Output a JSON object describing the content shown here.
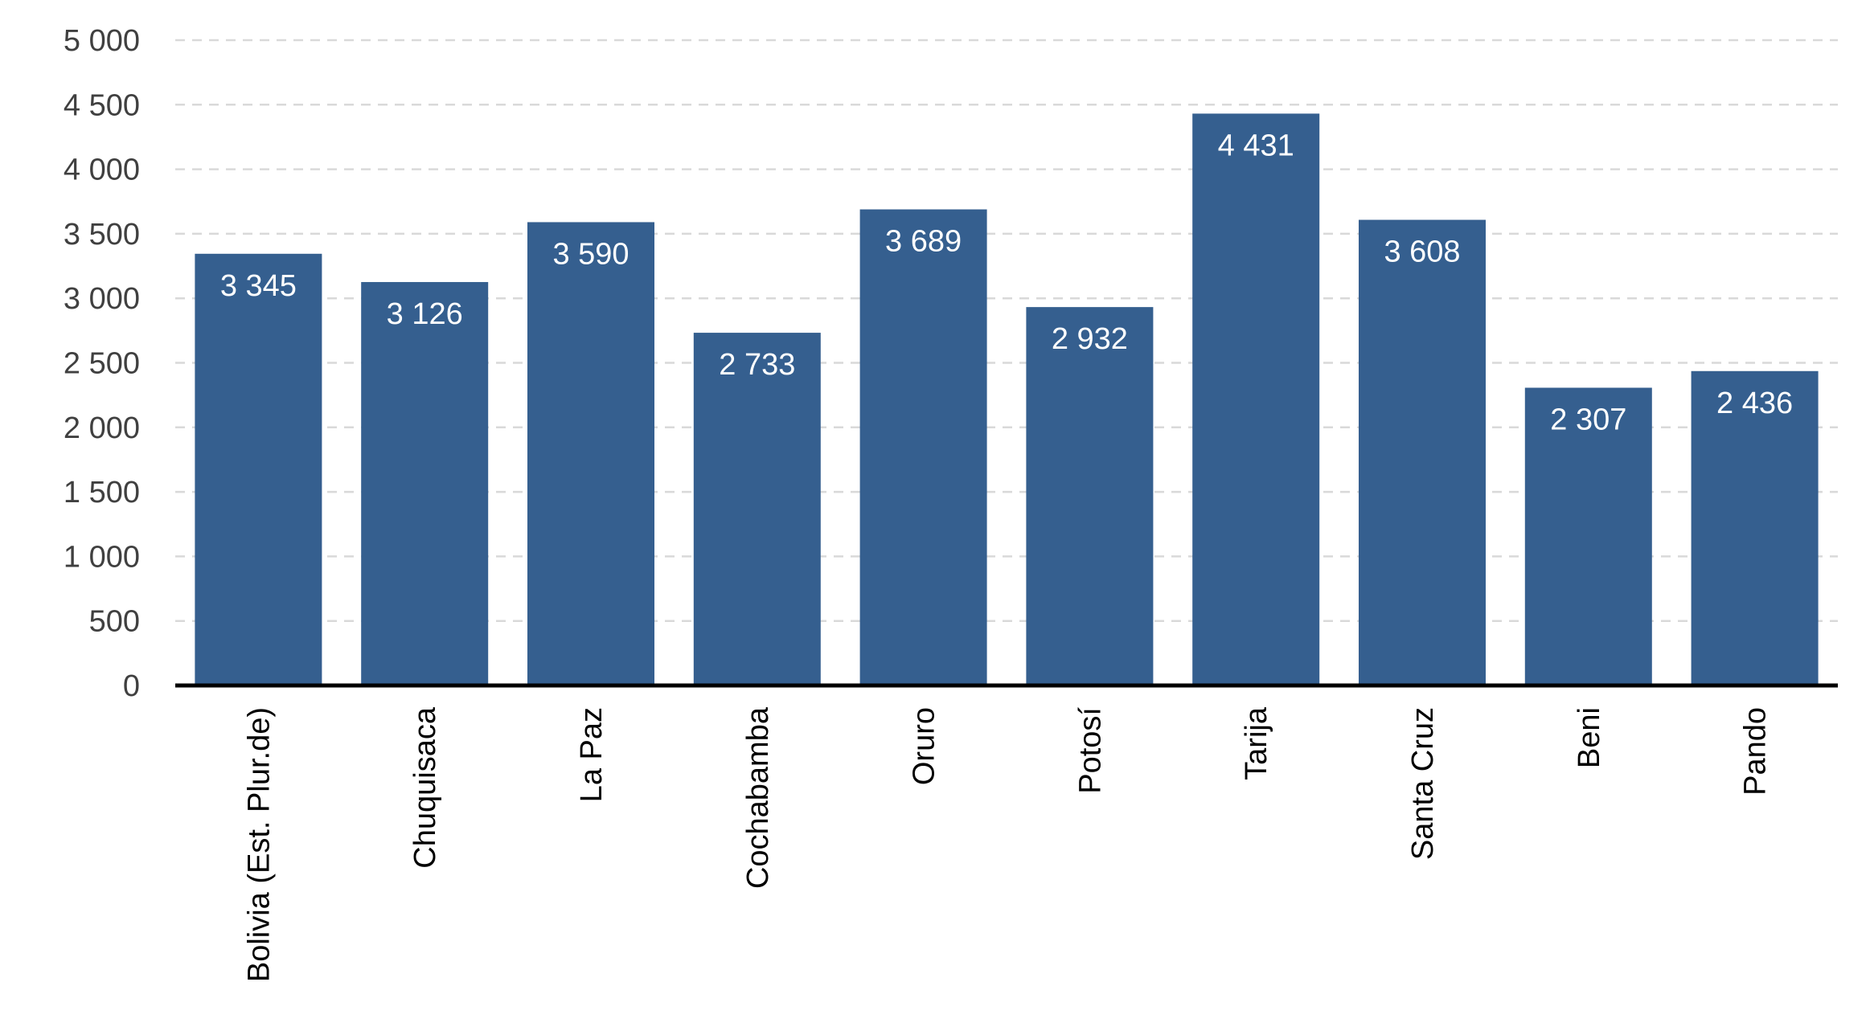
{
  "chart_data": {
    "type": "bar",
    "title": "",
    "xlabel": "",
    "ylabel": "",
    "categories": [
      "Bolivia (Est. Plur.de)",
      "Chuquisaca",
      "La Paz",
      "Cochabamba",
      "Oruro",
      "Potosí",
      "Tarija",
      "Santa Cruz",
      "Beni",
      "Pando"
    ],
    "values": [
      3345,
      3126,
      3590,
      2733,
      3689,
      2932,
      4431,
      3608,
      2307,
      2436
    ],
    "value_labels": [
      "3 345",
      "3 126",
      "3 590",
      "2 733",
      "3 689",
      "2 932",
      "4 431",
      "3 608",
      "2 307",
      "2 436"
    ],
    "ylim": [
      0,
      5000
    ],
    "yticks": [
      0,
      500,
      1000,
      1500,
      2000,
      2500,
      3000,
      3500,
      4000,
      4500,
      5000
    ],
    "ytick_labels": [
      "0",
      "500",
      "1 000",
      "1 500",
      "2 000",
      "2 500",
      "3 000",
      "3 500",
      "4 000",
      "4 500",
      "5 000"
    ],
    "grid": "horizontal dashed",
    "legend": "none",
    "colors": {
      "bar": "#355F8F",
      "grid": "#D9D9D9",
      "axis": "#000000",
      "tick_text": "#404040",
      "category_text": "#000000",
      "data_label_text": "#FFFFFF"
    }
  }
}
